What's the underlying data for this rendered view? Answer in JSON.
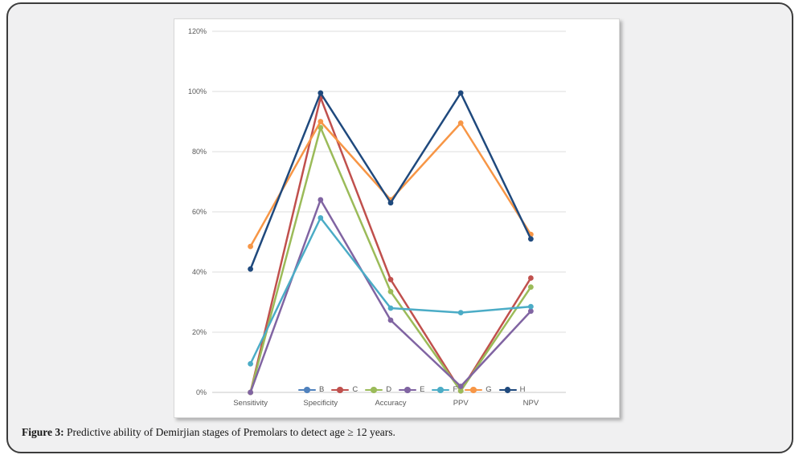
{
  "figure": {
    "caption_label": "Figure 3:",
    "caption_text": " Predictive ability of Demirjian stages of Premolars to detect age ≥ 12 years."
  },
  "colors": {
    "frame_border": "#3c3c3c",
    "frame_background": "#f0f0f1",
    "panel_background": "#ffffff",
    "gridline": "#dcdcdc",
    "axis_line": "#c9c9c9",
    "tick_text": "#595959",
    "legend_text": "#595959"
  },
  "chart_data": {
    "type": "line",
    "title": "",
    "xlabel": "",
    "ylabel": "",
    "categories": [
      "Sensitivity",
      "Specificity",
      "Accuracy",
      "PPV",
      "NPV"
    ],
    "y_ticks": [
      "0%",
      "20%",
      "40%",
      "60%",
      "80%",
      "100%",
      "120%"
    ],
    "ylim": [
      0,
      120
    ],
    "y_step": 20,
    "grid": true,
    "legend_position": "bottom-inside",
    "marker_style": "circle",
    "series": [
      {
        "name": "B",
        "color": "#4F81BD",
        "values": [
          null,
          null,
          null,
          null,
          null
        ]
      },
      {
        "name": "C",
        "color": "#C0504D",
        "values": [
          0,
          98,
          37.5,
          0.5,
          38
        ]
      },
      {
        "name": "D",
        "color": "#9BBB59",
        "values": [
          0,
          88,
          33.5,
          0.5,
          35
        ]
      },
      {
        "name": "E",
        "color": "#8064A2",
        "values": [
          0,
          64,
          24,
          2,
          27
        ]
      },
      {
        "name": "F",
        "color": "#4BACC6",
        "values": [
          9.5,
          58,
          28,
          26.5,
          28.5
        ]
      },
      {
        "name": "G",
        "color": "#F79646",
        "values": [
          48.5,
          90,
          64,
          89.5,
          52.5
        ]
      },
      {
        "name": "H",
        "color": "#1F497D",
        "values": [
          41,
          99.5,
          63,
          99.5,
          51
        ]
      }
    ]
  }
}
